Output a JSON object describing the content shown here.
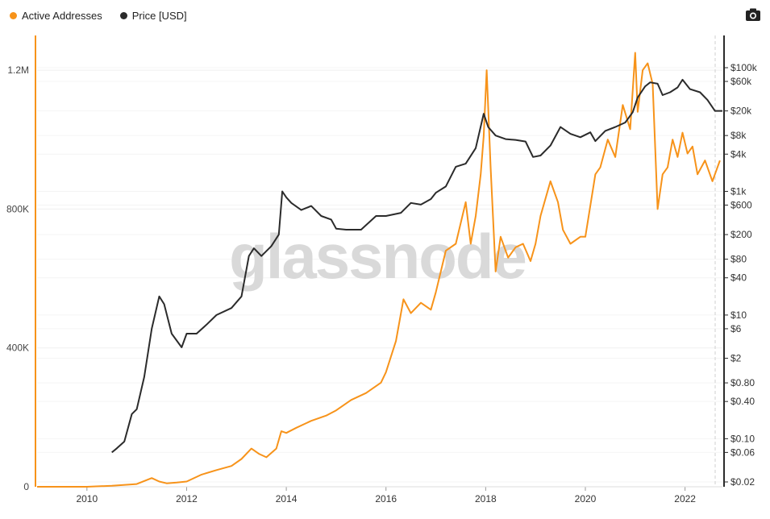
{
  "legend": {
    "active_label": "Active Addresses",
    "price_label": "Price [USD]"
  },
  "toolbar": {
    "camera_icon": "camera-icon"
  },
  "watermark": "glassnode",
  "colors": {
    "active": "#f7931a",
    "price": "#2b2b2b",
    "grid": "#efefef"
  },
  "chart_data": {
    "type": "line",
    "x_range": [
      2009.0,
      2022.75
    ],
    "x_ticks": [
      "2010",
      "2012",
      "2014",
      "2016",
      "2018",
      "2020",
      "2022"
    ],
    "y_left": {
      "label": "Active Addresses",
      "range": [
        0,
        1300000
      ],
      "ticks": [
        "0",
        "400K",
        "800K",
        "1.2M"
      ]
    },
    "y_right": {
      "label": "Price [USD]",
      "scale": "log",
      "range": [
        0.02,
        100000
      ],
      "ticks": [
        "$100k",
        "$60k",
        "$20k",
        "$8k",
        "$4k",
        "$1k",
        "$600",
        "$200",
        "$80",
        "$40",
        "$10",
        "$6",
        "$2",
        "$0.80",
        "$0.40",
        "$0.10",
        "$0.06",
        "$0.02"
      ]
    },
    "series": [
      {
        "name": "Active Addresses",
        "axis": "left",
        "x": [
          2009.0,
          2009.5,
          2010.0,
          2010.5,
          2011.0,
          2011.3,
          2011.45,
          2011.6,
          2011.8,
          2012.0,
          2012.3,
          2012.6,
          2012.9,
          2013.1,
          2013.3,
          2013.45,
          2013.6,
          2013.8,
          2013.9,
          2014.0,
          2014.2,
          2014.5,
          2014.8,
          2015.0,
          2015.3,
          2015.6,
          2015.9,
          2016.0,
          2016.2,
          2016.35,
          2016.5,
          2016.7,
          2016.9,
          2017.0,
          2017.2,
          2017.4,
          2017.6,
          2017.7,
          2017.8,
          2017.9,
          2017.96,
          2018.02,
          2018.1,
          2018.2,
          2018.3,
          2018.45,
          2018.6,
          2018.75,
          2018.9,
          2019.0,
          2019.1,
          2019.3,
          2019.45,
          2019.55,
          2019.7,
          2019.9,
          2020.0,
          2020.2,
          2020.3,
          2020.45,
          2020.6,
          2020.75,
          2020.9,
          2021.0,
          2021.05,
          2021.15,
          2021.25,
          2021.35,
          2021.45,
          2021.55,
          2021.65,
          2021.75,
          2021.85,
          2021.95,
          2022.05,
          2022.15,
          2022.25,
          2022.4,
          2022.55,
          2022.7
        ],
        "y": [
          0,
          0,
          0,
          3000,
          8000,
          25000,
          15000,
          10000,
          12000,
          15000,
          35000,
          48000,
          60000,
          80000,
          110000,
          95000,
          85000,
          110000,
          160000,
          155000,
          170000,
          190000,
          205000,
          220000,
          250000,
          270000,
          300000,
          330000,
          420000,
          540000,
          500000,
          530000,
          510000,
          560000,
          680000,
          700000,
          820000,
          700000,
          780000,
          900000,
          1010000,
          1200000,
          920000,
          620000,
          720000,
          660000,
          690000,
          700000,
          650000,
          700000,
          780000,
          880000,
          820000,
          740000,
          700000,
          720000,
          720000,
          900000,
          920000,
          1000000,
          950000,
          1100000,
          1030000,
          1250000,
          1080000,
          1200000,
          1220000,
          1160000,
          800000,
          900000,
          920000,
          1000000,
          950000,
          1020000,
          960000,
          980000,
          900000,
          940000,
          880000,
          940000
        ]
      },
      {
        "name": "Price [USD]",
        "axis": "right",
        "x": [
          2010.5,
          2010.6,
          2010.75,
          2010.9,
          2011.0,
          2011.15,
          2011.3,
          2011.45,
          2011.55,
          2011.7,
          2011.9,
          2012.0,
          2012.2,
          2012.4,
          2012.6,
          2012.9,
          2013.1,
          2013.25,
          2013.35,
          2013.5,
          2013.7,
          2013.85,
          2013.92,
          2014.0,
          2014.1,
          2014.3,
          2014.5,
          2014.7,
          2014.9,
          2015.0,
          2015.2,
          2015.5,
          2015.8,
          2016.0,
          2016.3,
          2016.5,
          2016.7,
          2016.9,
          2017.0,
          2017.2,
          2017.4,
          2017.6,
          2017.8,
          2017.96,
          2018.05,
          2018.2,
          2018.4,
          2018.6,
          2018.8,
          2018.95,
          2019.1,
          2019.3,
          2019.5,
          2019.7,
          2019.9,
          2020.1,
          2020.2,
          2020.4,
          2020.6,
          2020.8,
          2020.95,
          2021.05,
          2021.2,
          2021.3,
          2021.45,
          2021.55,
          2021.7,
          2021.85,
          2021.95,
          2022.1,
          2022.3,
          2022.45,
          2022.6,
          2022.75
        ],
        "y": [
          0.06,
          0.07,
          0.09,
          0.25,
          0.3,
          1.0,
          6,
          20,
          15,
          5,
          3,
          5,
          5,
          7,
          10,
          13,
          20,
          90,
          120,
          90,
          130,
          200,
          1000,
          800,
          650,
          500,
          580,
          400,
          350,
          250,
          240,
          240,
          400,
          400,
          450,
          650,
          610,
          750,
          950,
          1200,
          2500,
          2800,
          5000,
          18000,
          11000,
          8000,
          7000,
          6800,
          6400,
          3600,
          3800,
          5500,
          11000,
          8500,
          7500,
          9000,
          6500,
          9500,
          11000,
          13000,
          19000,
          33000,
          50000,
          58000,
          55000,
          36000,
          40000,
          48000,
          64000,
          45000,
          40000,
          30000,
          20000,
          20000
        ]
      }
    ]
  }
}
